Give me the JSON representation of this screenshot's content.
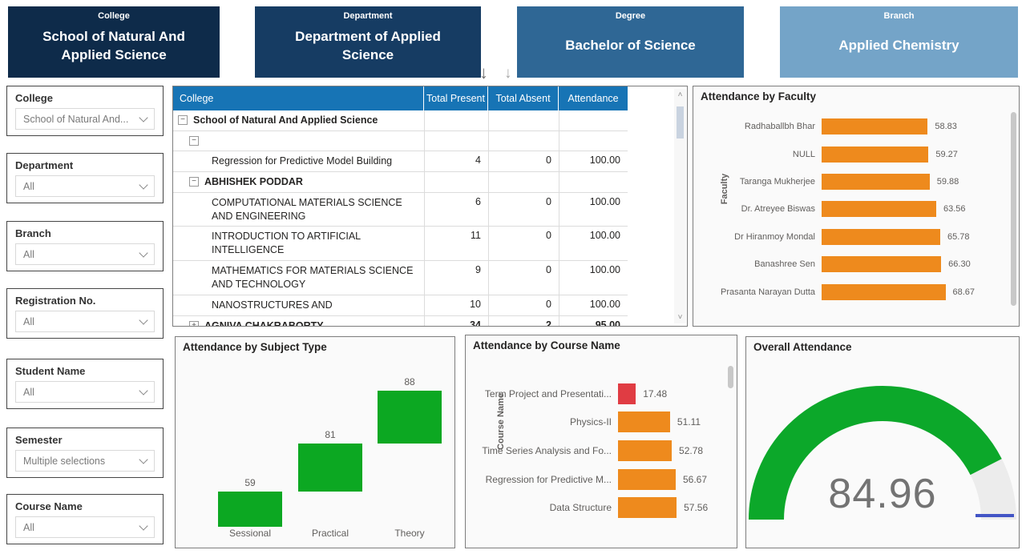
{
  "header_cards": [
    {
      "label": "College",
      "value": "School of Natural And Applied Science",
      "bg": "#0e2b4a"
    },
    {
      "label": "Department",
      "value": "Department of Applied Science",
      "bg": "#163c63"
    },
    {
      "label": "Degree",
      "value": "Bachelor of Science",
      "bg": "#2f6795"
    },
    {
      "label": "Branch",
      "value": "Applied Chemistry",
      "bg": "#74a4c8"
    }
  ],
  "icons": {
    "drill_down_arrow": "↓",
    "scroll_up_arrow": "˄",
    "scroll_down_arrow": "˅",
    "collapse_minus": "−",
    "expand_plus": "+"
  },
  "filters": [
    {
      "label": "College",
      "value": "School of Natural And..."
    },
    {
      "label": "Department",
      "value": "All"
    },
    {
      "label": "Branch",
      "value": "All"
    },
    {
      "label": "Registration No.",
      "value": "All"
    },
    {
      "label": "Student Name",
      "value": "All"
    },
    {
      "label": "Semester",
      "value": "Multiple selections"
    },
    {
      "label": "Course Name",
      "value": "All"
    }
  ],
  "matrix": {
    "header_bg": "#1774b5",
    "columns": [
      "College",
      "Total Present",
      "Total Absent",
      "Attendance"
    ],
    "rows": [
      {
        "label": "School of Natural And Applied Science",
        "level": 0,
        "icon": "collapse",
        "bold": true,
        "present": "",
        "absent": "",
        "attendance": ""
      },
      {
        "label": "",
        "level": 1,
        "icon": "collapse",
        "bold": true,
        "present": "",
        "absent": "",
        "attendance": ""
      },
      {
        "label": "Regression for Predictive Model Building",
        "level": 2,
        "icon": "",
        "bold": false,
        "present": "4",
        "absent": "0",
        "attendance": "100.00"
      },
      {
        "label": "ABHISHEK PODDAR",
        "level": 1,
        "icon": "collapse",
        "bold": true,
        "present": "",
        "absent": "",
        "attendance": ""
      },
      {
        "label": "COMPUTATIONAL MATERIALS SCIENCE AND ENGINEERING",
        "level": 2,
        "icon": "",
        "bold": false,
        "present": "6",
        "absent": "0",
        "attendance": "100.00"
      },
      {
        "label": "INTRODUCTION TO ARTIFICIAL INTELLIGENCE",
        "level": 2,
        "icon": "",
        "bold": false,
        "present": "11",
        "absent": "0",
        "attendance": "100.00"
      },
      {
        "label": "MATHEMATICS FOR MATERIALS SCIENCE AND TECHNOLOGY",
        "level": 2,
        "icon": "",
        "bold": false,
        "present": "9",
        "absent": "0",
        "attendance": "100.00"
      },
      {
        "label": "NANOSTRUCTURES AND",
        "level": 2,
        "icon": "",
        "bold": false,
        "present": "10",
        "absent": "0",
        "attendance": "100.00"
      },
      {
        "label": "AGNIVA CHAKRABORTY",
        "level": 1,
        "icon": "expand",
        "bold": true,
        "present": "34",
        "absent": "2",
        "attendance": "95.00"
      }
    ]
  },
  "chart_data": [
    {
      "id": "faculty",
      "type": "bar",
      "orientation": "horizontal",
      "title": "Attendance by Faculty",
      "ylabel": "Faculty",
      "categories": [
        "Radhaballbh Bhar",
        "NULL",
        "Taranga Mukherjee",
        "Dr. Atreyee Biswas",
        "Dr Hiranmoy Mondal",
        "Banashree Sen",
        "Prasanta Narayan Dutta"
      ],
      "values": [
        58.83,
        59.27,
        59.88,
        63.56,
        65.78,
        66.3,
        68.67
      ],
      "bar_color": "#ee8a1d",
      "xlim": [
        0,
        70
      ],
      "grid": false,
      "legend": "none"
    },
    {
      "id": "subject_type",
      "type": "waterfall",
      "title": "Attendance by Subject Type",
      "categories": [
        "Sessional",
        "Practical",
        "Theory"
      ],
      "values": [
        59,
        81,
        88
      ],
      "bar_color": "#0ca822",
      "ylim": [
        0,
        228
      ],
      "grid": false,
      "legend": "none"
    },
    {
      "id": "course",
      "type": "bar",
      "orientation": "horizontal",
      "title": "Attendance by Course Name",
      "ylabel": "Course Name",
      "categories": [
        "Term Project and Presentati...",
        "Physics-II",
        "Time Series Analysis and Fo...",
        "Regression for Predictive M...",
        "Data Structure"
      ],
      "values": [
        17.48,
        51.11,
        52.78,
        56.67,
        57.56
      ],
      "bar_colors": [
        "#e03c43",
        "#ee8a1d",
        "#ee8a1d",
        "#ee8a1d",
        "#ee8a1d"
      ],
      "xlim": [
        0,
        60
      ],
      "grid": false,
      "legend": "none"
    },
    {
      "id": "overall",
      "type": "gauge",
      "title": "Overall Attendance",
      "value": 84.96,
      "min": 0,
      "max": 100,
      "fill_color": "#0ca82a",
      "track_color": "#ececec",
      "target_color": "#4254c5"
    }
  ]
}
